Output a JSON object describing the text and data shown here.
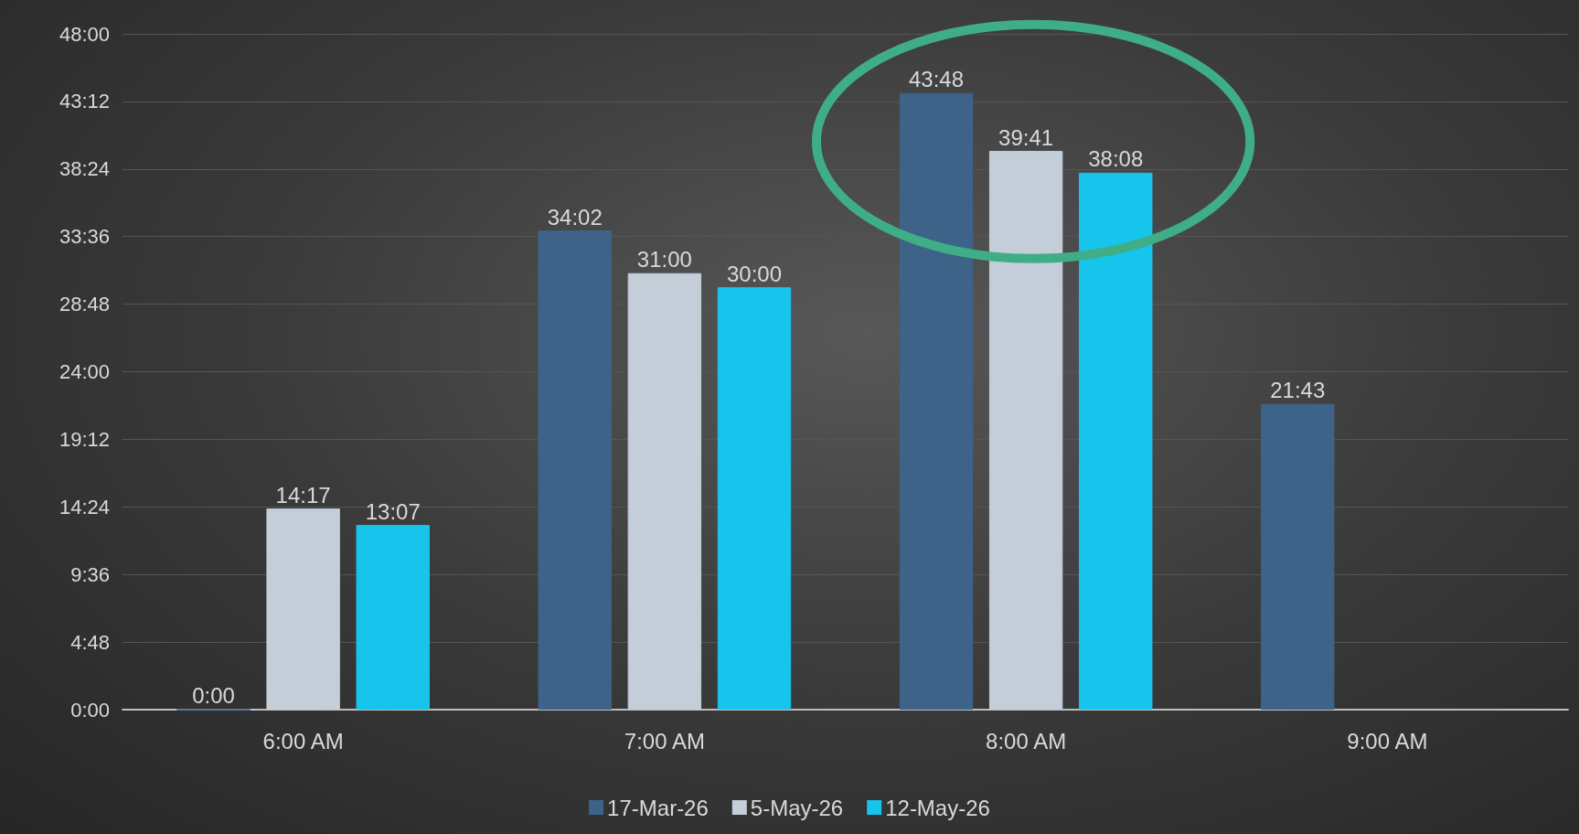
{
  "chart_data": {
    "type": "bar",
    "categories": [
      "6:00 AM",
      "7:00 AM",
      "8:00 AM",
      "9:00 AM"
    ],
    "series": [
      {
        "name": "17-Mar-26",
        "color": "#3d6488",
        "values": [
          0,
          34.033,
          43.8,
          21.717
        ],
        "value_labels": [
          "0:00",
          "34:02",
          "43:48",
          "21:43"
        ]
      },
      {
        "name": "5-May-26",
        "color": "#c3ced8",
        "values": [
          14.283,
          31,
          39.683,
          null
        ],
        "value_labels": [
          "14:17",
          "31:00",
          "39:41",
          null
        ]
      },
      {
        "name": "12-May-26",
        "color": "#17c4ec",
        "values": [
          13.117,
          30,
          38.133,
          null
        ],
        "value_labels": [
          "13:07",
          "30:00",
          "38:08",
          null
        ]
      }
    ],
    "ylim": [
      0,
      48
    ],
    "yticks": [
      {
        "value": 0,
        "label": "0:00"
      },
      {
        "value": 4.8,
        "label": "4:48"
      },
      {
        "value": 9.6,
        "label": "9:36"
      },
      {
        "value": 14.4,
        "label": "14:24"
      },
      {
        "value": 19.2,
        "label": "19:12"
      },
      {
        "value": 24,
        "label": "24:00"
      },
      {
        "value": 28.8,
        "label": "28:48"
      },
      {
        "value": 33.6,
        "label": "33:36"
      },
      {
        "value": 38.4,
        "label": "38:24"
      },
      {
        "value": 43.2,
        "label": "43:12"
      },
      {
        "value": 48,
        "label": "48:00"
      }
    ],
    "grid": "y",
    "legend": "bottom"
  }
}
